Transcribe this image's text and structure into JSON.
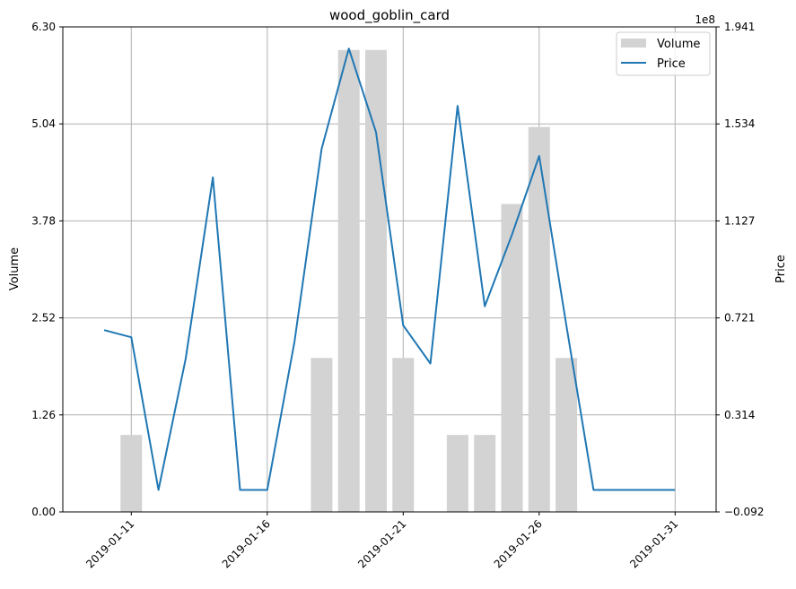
{
  "chart_data": {
    "type": "bar+line",
    "title": "wood_goblin_card",
    "ylabel_left": "Volume",
    "ylabel_right": "Price",
    "right_axis_multiplier": "1e8",
    "x_dates": [
      "2019-01-10",
      "2019-01-11",
      "2019-01-12",
      "2019-01-13",
      "2019-01-14",
      "2019-01-15",
      "2019-01-16",
      "2019-01-17",
      "2019-01-18",
      "2019-01-19",
      "2019-01-20",
      "2019-01-21",
      "2019-01-22",
      "2019-01-23",
      "2019-01-24",
      "2019-01-25",
      "2019-01-26",
      "2019-01-27",
      "2019-01-28",
      "2019-01-29",
      "2019-01-30",
      "2019-01-31"
    ],
    "x_tick_labels": [
      "2019-01-11",
      "2019-01-16",
      "2019-01-21",
      "2019-01-26",
      "2019-01-31"
    ],
    "left_ylim": [
      0,
      6.3
    ],
    "left_ticks": [
      "0.00",
      "1.26",
      "2.52",
      "3.78",
      "5.04",
      "6.30"
    ],
    "right_ylim": [
      -0.092,
      1.941
    ],
    "right_ticks": [
      "−0.092",
      "0.314",
      "0.721",
      "1.127",
      "1.534",
      "1.941"
    ],
    "grid": true,
    "legend_position": "top-right",
    "series": [
      {
        "name": "Volume",
        "kind": "bar",
        "color": "#d3d3d3",
        "values": [
          0,
          1,
          0,
          0,
          0,
          0,
          0,
          0,
          2,
          6,
          6,
          2,
          0,
          1,
          1,
          4,
          5,
          2,
          0,
          0,
          0,
          0
        ]
      },
      {
        "name": "Price",
        "kind": "line",
        "color": "#1f77b4",
        "values": [
          0.67,
          0.64,
          0.0,
          0.55,
          1.31,
          0.0,
          0.0,
          0.62,
          1.43,
          1.85,
          1.5,
          0.69,
          0.53,
          1.61,
          0.77,
          1.07,
          1.4,
          0.69,
          0.0,
          0.0,
          0.0,
          0.0
        ]
      }
    ]
  }
}
